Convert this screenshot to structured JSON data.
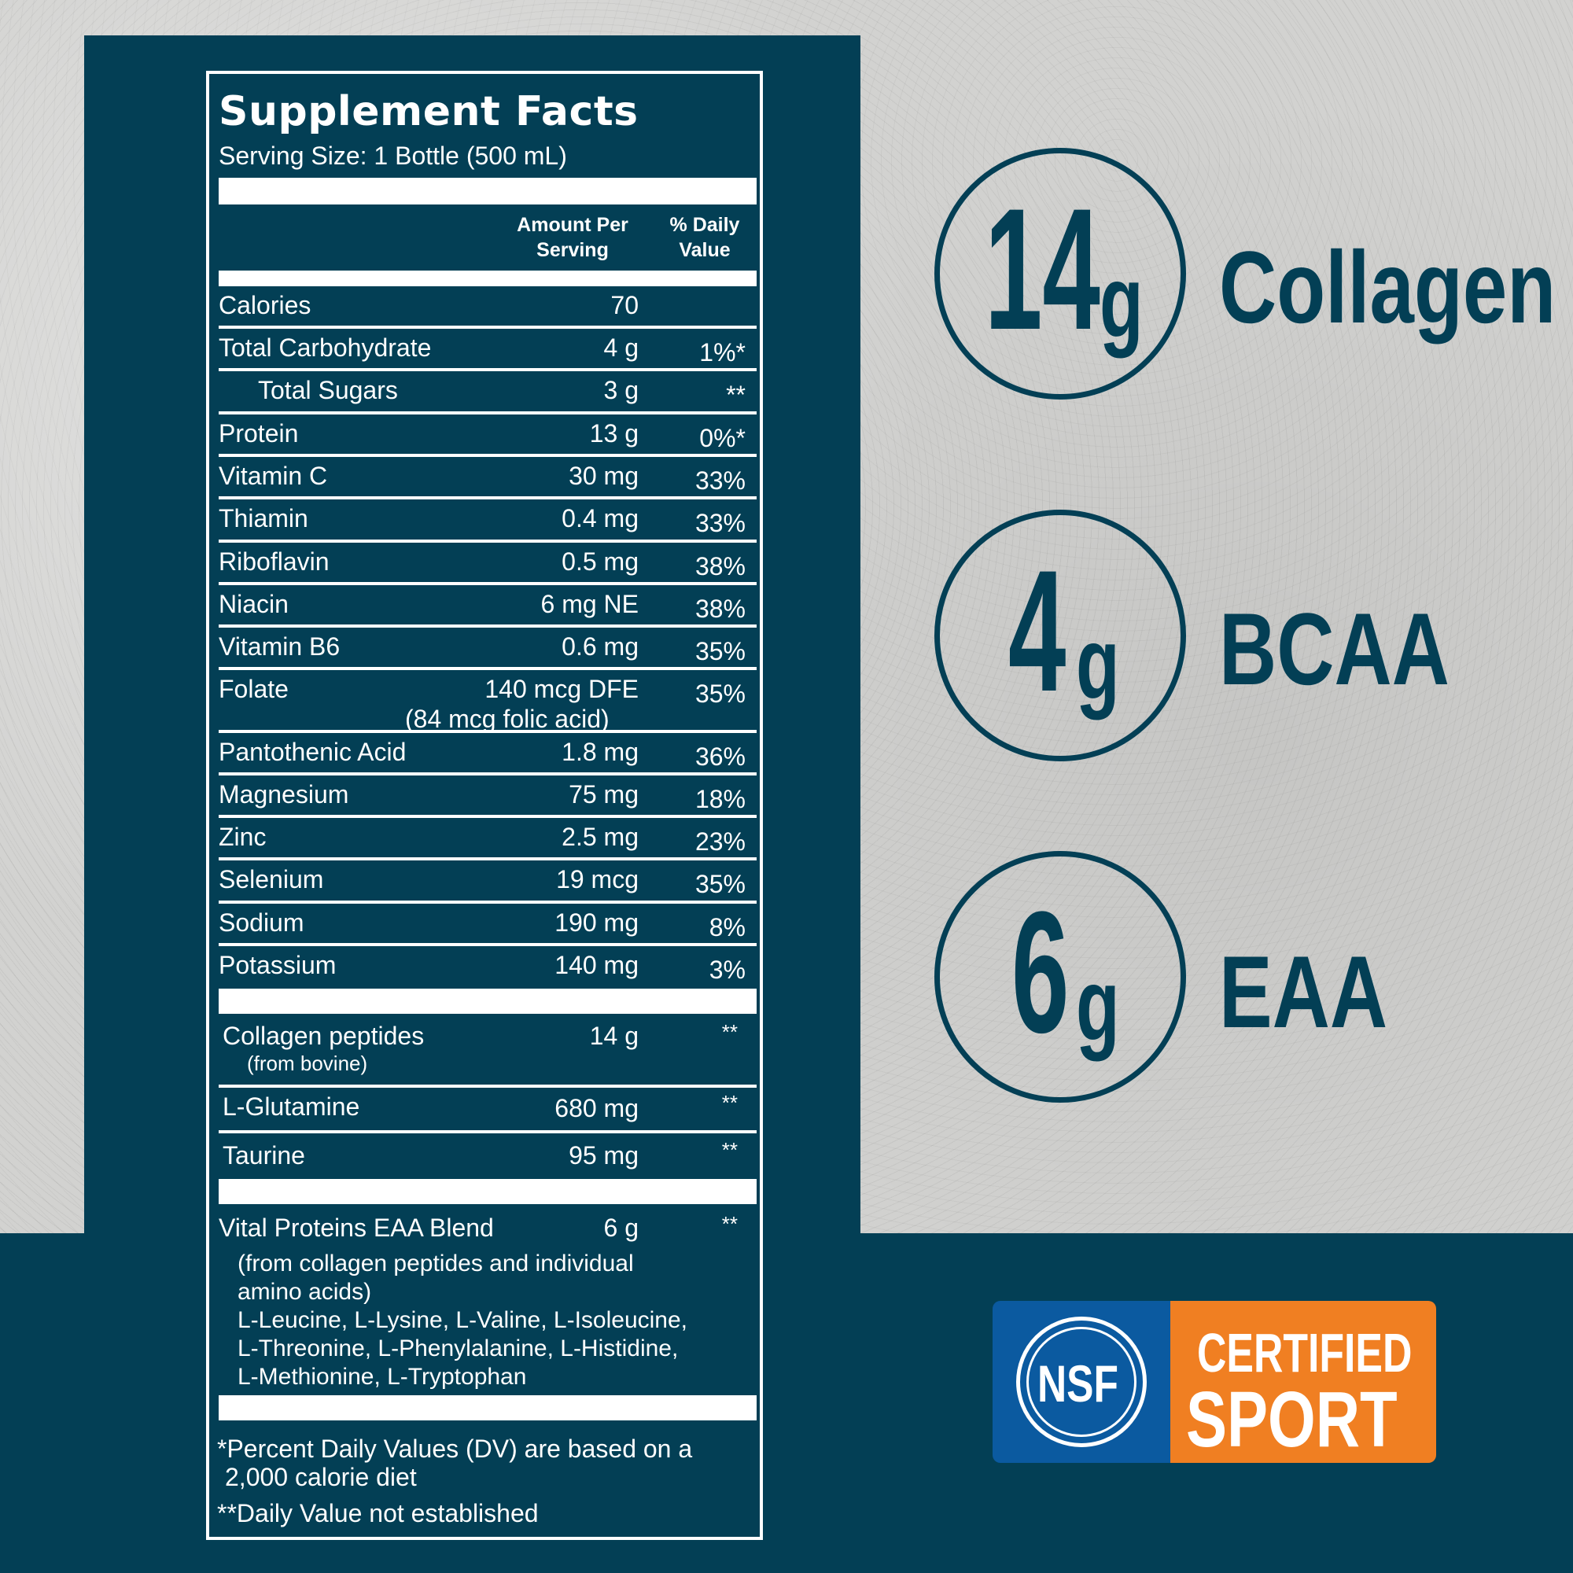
{
  "label": {
    "title": "Supplement Facts",
    "serving_size": "Serving Size: 1 Bottle (500 mL)",
    "header_amount_line1": "Amount Per",
    "header_amount_line2": "Serving",
    "header_dv_line1": "% Daily",
    "header_dv_line2": "Value",
    "nutrients": [
      {
        "name": "Calories",
        "amount": "70",
        "dv": ""
      },
      {
        "name": "Total Carbohydrate",
        "amount": "4 g",
        "dv": "1%*"
      },
      {
        "name": "Total Sugars",
        "amount": "3 g",
        "dv": "**"
      },
      {
        "name": "Protein",
        "amount": "13 g",
        "dv": "0%*"
      },
      {
        "name": "Vitamin C",
        "amount": "30 mg",
        "dv": "33%"
      },
      {
        "name": "Thiamin",
        "amount": "0.4 mg",
        "dv": "33%"
      },
      {
        "name": "Riboflavin",
        "amount": "0.5 mg",
        "dv": "38%"
      },
      {
        "name": "Niacin",
        "amount": "6 mg NE",
        "dv": "38%"
      },
      {
        "name": "Vitamin B6",
        "amount": "0.6 mg",
        "dv": "35%"
      },
      {
        "name": "Folate",
        "amount": "140 mcg DFE",
        "sub": "(84 mcg folic acid)",
        "dv": "35%"
      },
      {
        "name": "Pantothenic Acid",
        "amount": "1.8 mg",
        "dv": "36%"
      },
      {
        "name": "Magnesium",
        "amount": "75 mg",
        "dv": "18%"
      },
      {
        "name": "Zinc",
        "amount": "2.5 mg",
        "dv": "23%"
      },
      {
        "name": "Selenium",
        "amount": "19 mcg",
        "dv": "35%"
      },
      {
        "name": "Sodium",
        "amount": "190 mg",
        "dv": "8%"
      },
      {
        "name": "Potassium",
        "amount": "140 mg",
        "dv": "3%"
      }
    ],
    "others": [
      {
        "name": "Collagen peptides",
        "note": "(from bovine)",
        "amount": "14 g",
        "dv": "**"
      },
      {
        "name": "L-Glutamine",
        "amount": "680 mg",
        "dv": "**"
      },
      {
        "name": "Taurine",
        "amount": "95 mg",
        "dv": "**"
      }
    ],
    "eaa": {
      "name": "Vital Proteins EAA Blend",
      "amount": "6 g",
      "dv": "**",
      "lines": [
        "(from collagen peptides and individual",
        "amino acids)",
        "L-Leucine, L-Lysine, L-Valine, L-Isoleucine,",
        "L-Threonine, L-Phenylalanine, L-Histidine,",
        "L-Methionine, L-Tryptophan"
      ]
    },
    "footnote_1a": "*Percent Daily Values (DV) are based on a",
    "footnote_1b": "2,000 calorie diet",
    "footnote_2": "**Daily Value not established"
  },
  "highlights": [
    {
      "number": "14",
      "unit": "g",
      "word": "Collagen"
    },
    {
      "number": "4",
      "unit": "g",
      "word": "BCAA"
    },
    {
      "number": "6",
      "unit": "g",
      "word": "EAA"
    }
  ],
  "badge": {
    "logo_text": "NSF",
    "line1": "CERTIFIED",
    "line2": "SPORT"
  },
  "colors": {
    "navy": "#033f55",
    "concrete": "#d2d2d0",
    "nsf_blue": "#0b5aa0",
    "nsf_orange": "#f07f22"
  }
}
